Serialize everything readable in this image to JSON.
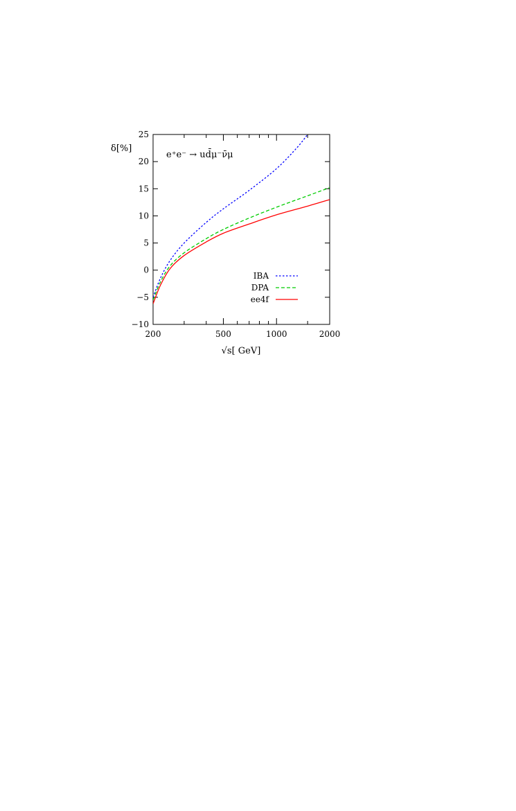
{
  "chart_data": {
    "type": "line",
    "annotation": "e⁺e⁻ → ud̄μ⁻ν̄μ",
    "ylabel": "δ[%]",
    "xlabel": "√s[ GeV]",
    "xscale": "log",
    "xlim": [
      200,
      2000
    ],
    "ylim": [
      -10,
      25
    ],
    "grid": false,
    "legend_position": "bottom-right",
    "x_ticks": [
      200,
      500,
      1000,
      2000
    ],
    "x_minor_ticks": [
      300,
      400,
      600,
      700,
      800,
      900,
      1500
    ],
    "y_ticks": [
      -10,
      -5,
      0,
      5,
      10,
      15,
      20,
      25
    ],
    "series": [
      {
        "name": "IBA",
        "color": "#0000ff",
        "dash": "dotted",
        "x": [
          200,
          220,
          250,
          300,
          400,
          500,
          700,
          1000,
          1300,
          1500
        ],
        "y": [
          -5.0,
          -1.5,
          1.8,
          5.0,
          8.8,
          11.3,
          14.7,
          18.7,
          22.5,
          25.0
        ]
      },
      {
        "name": "DPA",
        "color": "#00cc00",
        "dash": "dashed",
        "x": [
          200,
          220,
          250,
          300,
          400,
          500,
          700,
          1000,
          1500,
          2000
        ],
        "y": [
          -5.5,
          -2.2,
          0.8,
          3.2,
          5.8,
          7.5,
          9.6,
          11.6,
          13.7,
          15.2
        ]
      },
      {
        "name": "ee4f",
        "color": "#ff0000",
        "dash": "solid",
        "x": [
          200,
          220,
          250,
          300,
          400,
          500,
          700,
          1000,
          1500,
          2000
        ],
        "y": [
          -6.2,
          -2.8,
          0.3,
          2.7,
          5.2,
          6.8,
          8.5,
          10.2,
          11.8,
          13.0
        ]
      }
    ]
  }
}
